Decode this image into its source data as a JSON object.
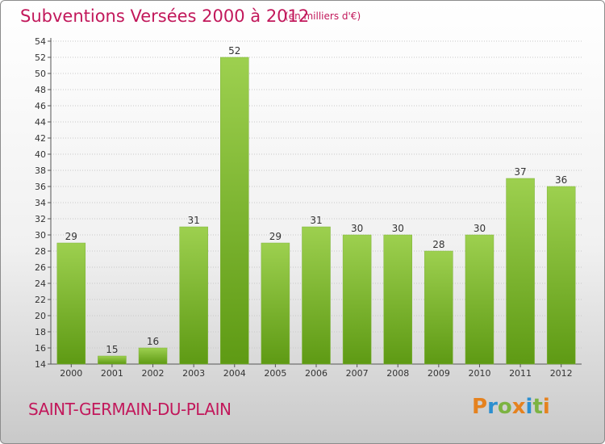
{
  "title": "Subventions Versées 2000 à 2012",
  "unit_note": "(en milliers d'€)",
  "city": "SAINT-GERMAIN-DU-PLAIN",
  "logo_letters": [
    {
      "ch": "P",
      "color": "#e5821f"
    },
    {
      "ch": "r",
      "color": "#2c8fd0"
    },
    {
      "ch": "o",
      "color": "#7cb342"
    },
    {
      "ch": "x",
      "color": "#e5821f"
    },
    {
      "ch": "i",
      "color": "#2c8fd0"
    },
    {
      "ch": "t",
      "color": "#7cb342"
    },
    {
      "ch": "i",
      "color": "#e5821f"
    }
  ],
  "colors": {
    "title": "#c2185b",
    "bar_light": "#9dd04f",
    "bar_dark": "#5e9a14",
    "grid": "#c8c8c8"
  },
  "chart_data": {
    "type": "bar",
    "categories": [
      "2000",
      "2001",
      "2002",
      "2003",
      "2004",
      "2005",
      "2006",
      "2007",
      "2008",
      "2009",
      "2010",
      "2011",
      "2012"
    ],
    "values": [
      29,
      15,
      16,
      31,
      52,
      29,
      31,
      30,
      30,
      28,
      30,
      37,
      36
    ],
    "ylim": [
      14,
      54
    ],
    "yticks": [
      14,
      16,
      18,
      20,
      22,
      24,
      26,
      28,
      30,
      32,
      34,
      36,
      38,
      40,
      42,
      44,
      46,
      48,
      50,
      52,
      54
    ],
    "grid": true,
    "legend": "none"
  }
}
